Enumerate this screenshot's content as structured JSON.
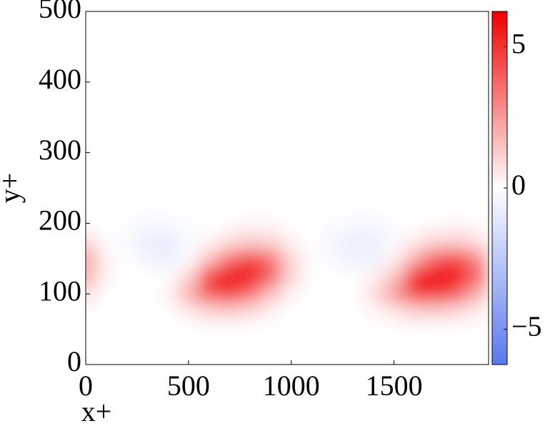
{
  "chart_data": {
    "type": "heatmap",
    "xlabel": "x+",
    "ylabel": "y+",
    "x": [
      0,
      100,
      200,
      300,
      400,
      500,
      600,
      700,
      800,
      900,
      1000,
      1100,
      1200,
      1300,
      1400,
      1500,
      1600,
      1700,
      1800,
      1900
    ],
    "y": [
      75,
      100,
      125,
      150,
      175,
      200
    ],
    "z": [
      [
        0,
        0,
        0,
        0,
        0,
        0.5,
        1,
        1.2,
        0.8,
        0.3,
        0,
        0,
        0,
        0,
        0.2,
        0.6,
        1.1,
        1.2,
        0.9,
        0.4
      ],
      [
        0.8,
        0,
        0,
        0,
        0.3,
        2,
        4,
        4.5,
        3.5,
        1.5,
        0.3,
        0,
        0,
        0,
        0.8,
        2.5,
        4.5,
        4.8,
        4,
        2
      ],
      [
        2,
        0.3,
        0,
        0,
        0,
        1,
        5,
        6.2,
        6,
        4,
        1,
        0,
        0,
        0,
        0.3,
        1.5,
        5.5,
        6.2,
        6,
        4
      ],
      [
        2.5,
        0.3,
        0,
        -0.5,
        -0.7,
        0,
        1.5,
        3.5,
        4.5,
        3.5,
        1,
        0,
        -0.3,
        -0.7,
        -0.5,
        0.3,
        2,
        4,
        4.5,
        3
      ],
      [
        1,
        0,
        -0.3,
        -0.8,
        -0.9,
        -0.3,
        0.2,
        0.8,
        1.2,
        1,
        0.3,
        0,
        -0.4,
        -0.8,
        -0.8,
        -0.2,
        0.5,
        1,
        1.2,
        0.8
      ],
      [
        0,
        0,
        -0.1,
        -0.3,
        -0.3,
        -0.1,
        0,
        0.1,
        0.2,
        0.2,
        0,
        0,
        -0.1,
        -0.3,
        -0.3,
        -0.1,
        0,
        0.1,
        0.2,
        0.1
      ]
    ],
    "xlim": [
      0,
      1960
    ],
    "ylim": [
      0,
      500
    ],
    "xticks": [
      0,
      500,
      1000,
      1500
    ],
    "yticks": [
      0,
      100,
      200,
      300,
      400,
      500
    ],
    "clim": [
      -6.25,
      6.25
    ],
    "cticks": [
      {
        "value": -5,
        "label": "−5"
      },
      0,
      5
    ],
    "colors": [
      "#5a78f0",
      "#ffffff",
      "#f00000"
    ]
  }
}
